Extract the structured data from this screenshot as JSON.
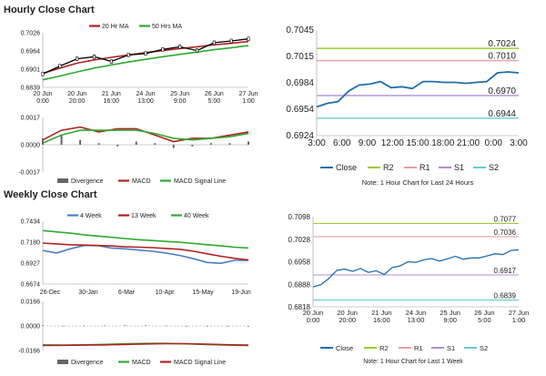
{
  "sections": {
    "hourly_title": "Hourly Close Chart",
    "weekly_title": "Weekly Close Chart"
  },
  "chart_data": [
    {
      "id": "hourly-price",
      "type": "line",
      "title": "",
      "legend": [
        "20 Hr MA",
        "50 Hrs MA"
      ],
      "legend_colors": [
        "#b22222",
        "#2eaa2e"
      ],
      "y_ticks": [
        "0.7026",
        "0.6964",
        "0.6901",
        "0.6839"
      ],
      "ylim": [
        0.6839,
        0.7026
      ],
      "x_ticks": [
        [
          "20 Jun",
          "0:00"
        ],
        [
          "20 Jun",
          "20:00"
        ],
        [
          "21 Jun",
          "16:00"
        ],
        [
          "24 Jun",
          "13:00"
        ],
        [
          "25 Jun",
          "9:00"
        ],
        [
          "26 Jun",
          "5:00"
        ],
        [
          "27 Jun",
          "1:00"
        ]
      ],
      "series": [
        {
          "name": "20 Hr MA",
          "color": "#b22222",
          "values": [
            0.6887,
            0.6905,
            0.6922,
            0.6933,
            0.6942,
            0.695,
            0.6958,
            0.6965,
            0.6972,
            0.6978,
            0.6985,
            0.699,
            0.6996
          ]
        },
        {
          "name": "50 Hrs MA",
          "color": "#2eaa2e",
          "values": [
            0.6865,
            0.6878,
            0.6892,
            0.6905,
            0.6916,
            0.6926,
            0.6935,
            0.6944,
            0.6952,
            0.696,
            0.6968,
            0.6975,
            0.6982
          ]
        },
        {
          "name": "Price",
          "color": "#000000",
          "values": [
            0.6885,
            0.6912,
            0.6937,
            0.6944,
            0.6928,
            0.695,
            0.6955,
            0.6969,
            0.6978,
            0.6965,
            0.6992,
            0.6998,
            0.7005
          ]
        }
      ]
    },
    {
      "id": "hourly-macd",
      "type": "line",
      "legend": [
        "Divergence",
        "MACD",
        "MACD Signal Line"
      ],
      "legend_colors": [
        "#666666",
        "#b22222",
        "#2eaa2e"
      ],
      "y_ticks": [
        "0.0017",
        "0.0000",
        "-0.0017"
      ],
      "ylim": [
        -0.0017,
        0.0017
      ],
      "series": [
        {
          "name": "MACD",
          "color": "#b22222",
          "values": [
            0.0003,
            0.0009,
            0.0011,
            0.0008,
            0.001,
            0.001,
            0.0006,
            0.0002,
            0.0004,
            0.0004,
            0.0006,
            0.0008
          ]
        },
        {
          "name": "MACD Signal Line",
          "color": "#2eaa2e",
          "values": [
            0.0001,
            0.0006,
            0.0009,
            0.0009,
            0.0009,
            0.0009,
            0.0007,
            0.0004,
            0.0003,
            0.0004,
            0.0005,
            0.0007
          ]
        },
        {
          "name": "Divergence",
          "color": "#666666",
          "values": [
            0.0004,
            0.0006,
            0.0003,
            0.0001,
            -0.0001,
            0.0002,
            0.0001,
            -0.0002,
            -0.0001,
            0.0001,
            0.0001,
            0.0002
          ]
        }
      ]
    },
    {
      "id": "hourly-levels",
      "type": "line",
      "y_ticks": [
        "0.7045",
        "0.7015",
        "0.6984",
        "0.6954",
        "0.6924"
      ],
      "ylim": [
        0.6924,
        0.7045
      ],
      "x_ticks": [
        "3:00",
        "6:00",
        "9:00",
        "12:00",
        "15:00",
        "18:00",
        "21:00",
        "0:00",
        "3:00"
      ],
      "levels": [
        {
          "name": "R2",
          "value": 0.7024,
          "label": "0.7024",
          "color": "#9acd32"
        },
        {
          "name": "R1",
          "value": 0.701,
          "label": "0.7010",
          "color": "#e8a0a0"
        },
        {
          "name": "S1",
          "value": 0.697,
          "label": "0.6970",
          "color": "#b48ecf"
        },
        {
          "name": "S2",
          "value": 0.6944,
          "label": "0.6944",
          "color": "#66cccc"
        }
      ],
      "close": {
        "name": "Close",
        "color": "#1f6fad",
        "values": [
          0.6957,
          0.6961,
          0.6963,
          0.6975,
          0.6982,
          0.6983,
          0.6986,
          0.6979,
          0.698,
          0.6978,
          0.6986,
          0.6986,
          0.6985,
          0.6985,
          0.6984,
          0.6985,
          0.6986,
          0.6996,
          0.6997,
          0.6996
        ]
      },
      "legend": [
        "Close",
        "R2",
        "R1",
        "S1",
        "S2"
      ],
      "note": "Note: 1 Hour Chart for Last 24 Hours"
    },
    {
      "id": "weekly-price",
      "type": "line",
      "legend": [
        "4 Week",
        "13 Week",
        "40 Week"
      ],
      "legend_colors": [
        "#4a7fc1",
        "#b22222",
        "#2eaa2e"
      ],
      "y_ticks": [
        "0.7434",
        "0.7180",
        "0.6927",
        "0.6674"
      ],
      "ylim": [
        0.6674,
        0.7434
      ],
      "x_ticks": [
        "26-Dec",
        "30-Jan",
        "6-Mar",
        "10-Apr",
        "15-May",
        "19-Jun"
      ],
      "series": [
        {
          "name": "4 Week",
          "color": "#4a7fc1",
          "values": [
            0.708,
            0.705,
            0.71,
            0.714,
            0.714,
            0.711,
            0.71,
            0.7085,
            0.707,
            0.705,
            0.702,
            0.698,
            0.6935,
            0.6925,
            0.696,
            0.696
          ]
        },
        {
          "name": "13 Week",
          "color": "#b22222",
          "values": [
            0.717,
            0.716,
            0.715,
            0.7145,
            0.714,
            0.7135,
            0.7125,
            0.712,
            0.7115,
            0.7105,
            0.7095,
            0.707,
            0.704,
            0.701,
            0.6985,
            0.6965
          ]
        },
        {
          "name": "40 Week",
          "color": "#2eaa2e",
          "values": [
            0.732,
            0.7305,
            0.729,
            0.727,
            0.7255,
            0.724,
            0.7225,
            0.721,
            0.72,
            0.719,
            0.718,
            0.7165,
            0.715,
            0.7135,
            0.712,
            0.711
          ]
        }
      ]
    },
    {
      "id": "weekly-macd",
      "type": "line",
      "legend": [
        "Divergence",
        "MACD",
        "MACD Signal Line"
      ],
      "legend_colors": [
        "#666666",
        "#2eaa2e",
        "#b22222"
      ],
      "y_ticks": [
        "0.0166",
        "0.0000",
        "-0.0166"
      ],
      "ylim": [
        -0.0166,
        0.0166
      ],
      "series": [
        {
          "name": "MACD",
          "color": "#2eaa2e",
          "values": [
            -0.0128,
            -0.013,
            -0.0128,
            -0.0125,
            -0.0121,
            -0.0118,
            -0.0118,
            -0.0121,
            -0.0126,
            -0.013,
            -0.0132
          ]
        },
        {
          "name": "MACD Signal Line",
          "color": "#b22222",
          "values": [
            -0.0132,
            -0.0131,
            -0.013,
            -0.0128,
            -0.0125,
            -0.0122,
            -0.012,
            -0.012,
            -0.0123,
            -0.0127,
            -0.013
          ]
        },
        {
          "name": "Divergence",
          "color": "#666666",
          "values": [
            0.0004,
            0.0001,
            0.0002,
            0.0003,
            0.0004,
            0.0004,
            0.0002,
            -0.0001,
            -0.0003,
            -0.0003,
            -0.0002
          ]
        }
      ]
    },
    {
      "id": "weekly-levels",
      "type": "line",
      "y_ticks": [
        "0.7098",
        "0.7028",
        "0.6958",
        "0.6888",
        "0.6818"
      ],
      "ylim": [
        0.6818,
        0.7098
      ],
      "x_ticks": [
        [
          "20 Jun",
          "0:00"
        ],
        [
          "20 Jun",
          "20:00"
        ],
        [
          "21 Jun",
          "16:00"
        ],
        [
          "24 Jun",
          "13:00"
        ],
        [
          "25 Jun",
          "9:00"
        ],
        [
          "26 Jun",
          "5:00"
        ],
        [
          "27 Jun",
          "1:00"
        ]
      ],
      "levels": [
        {
          "name": "R2",
          "value": 0.7077,
          "label": "0.7077",
          "color": "#9acd32"
        },
        {
          "name": "R1",
          "value": 0.7036,
          "label": "0.7036",
          "color": "#e8a0a0"
        },
        {
          "name": "S1",
          "value": 0.6917,
          "label": "0.6917",
          "color": "#b48ecf"
        },
        {
          "name": "S2",
          "value": 0.6839,
          "label": "0.6839",
          "color": "#66cccc"
        }
      ],
      "close": {
        "name": "Close",
        "color": "#1f6fad",
        "values": [
          0.688,
          0.6887,
          0.6906,
          0.6931,
          0.6935,
          0.6928,
          0.6937,
          0.6925,
          0.693,
          0.6918,
          0.694,
          0.6945,
          0.6958,
          0.6956,
          0.6964,
          0.6968,
          0.696,
          0.6967,
          0.6975,
          0.6966,
          0.697,
          0.697,
          0.6976,
          0.6983,
          0.698,
          0.6993,
          0.6995
        ]
      },
      "legend": [
        "Close",
        "R2",
        "R1",
        "S1",
        "S2"
      ],
      "note": "Note: 1 Hour Chart for Last 1 Week"
    }
  ]
}
